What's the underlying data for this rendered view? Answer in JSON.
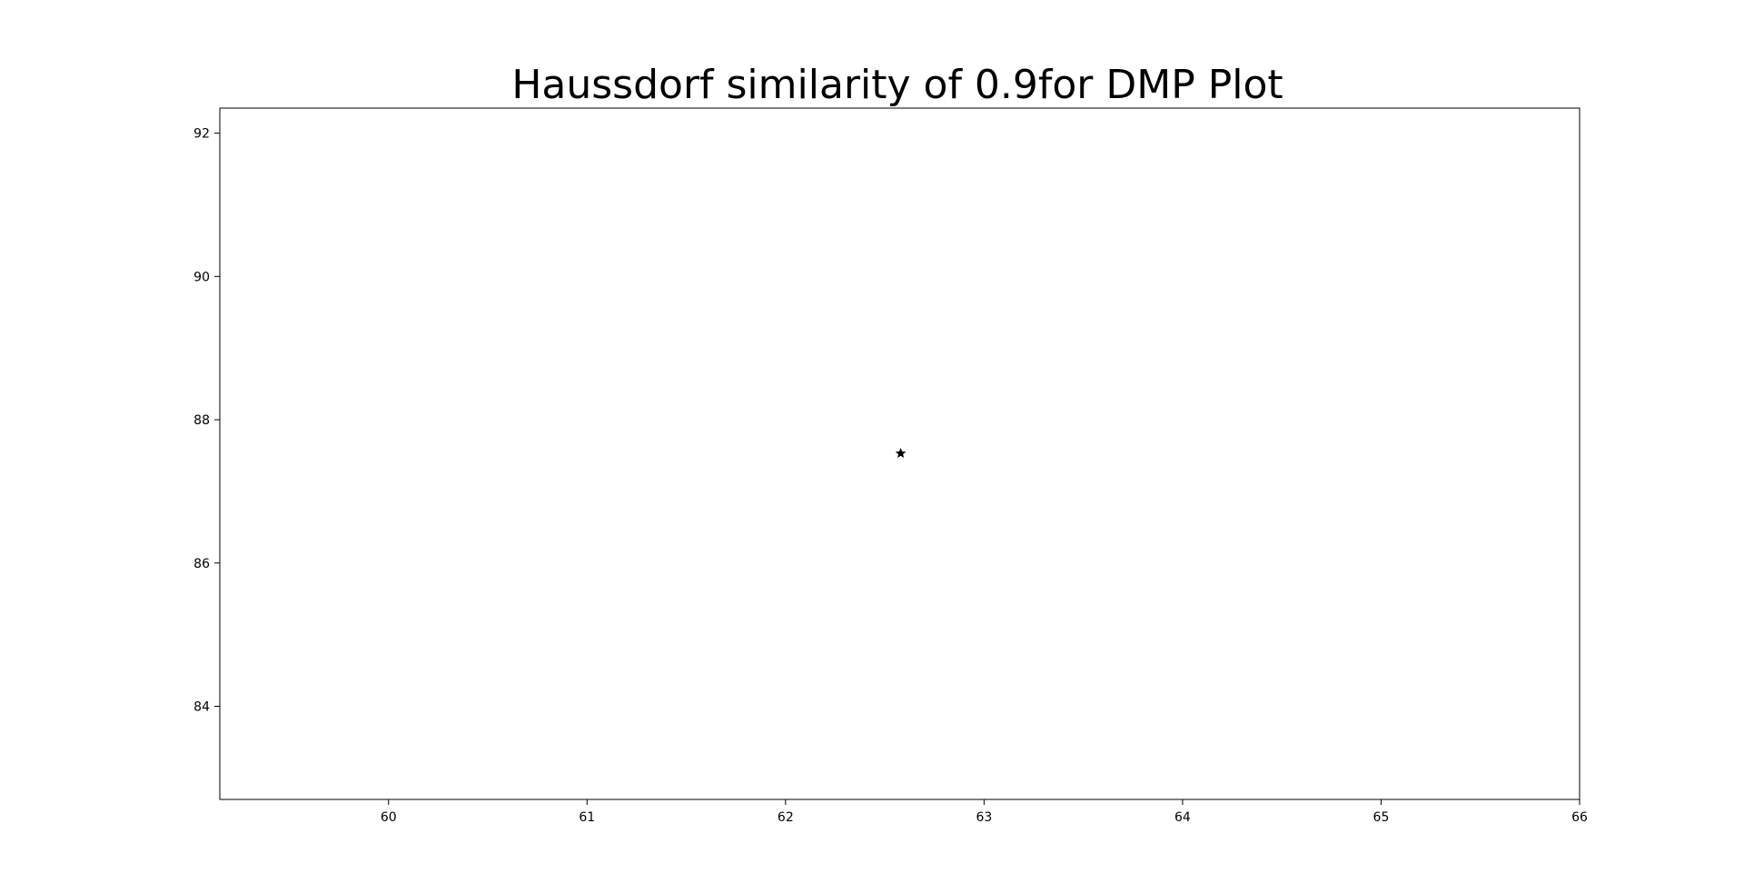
{
  "chart_data": {
    "type": "scatter",
    "title": "Haussdorf similarity of 0.9for DMP Plot",
    "xlabel": "",
    "ylabel": "",
    "xlim": [
      59.15,
      66.0
    ],
    "ylim": [
      82.7,
      92.35
    ],
    "xticks": [
      60,
      61,
      62,
      63,
      64,
      65,
      66
    ],
    "yticks": [
      84,
      86,
      88,
      90,
      92
    ],
    "grid": false,
    "series": [
      {
        "marker": "star",
        "color": "#000000",
        "points": [
          {
            "x": 62.58,
            "y": 87.53
          }
        ]
      }
    ]
  }
}
